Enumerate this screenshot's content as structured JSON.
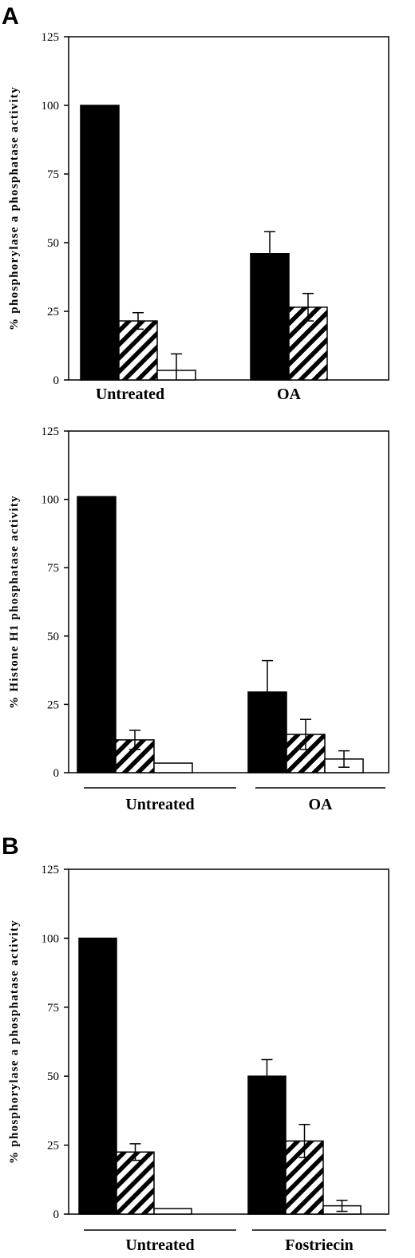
{
  "panel_letters": [
    "A",
    "B"
  ],
  "colors": {
    "black": "#000000",
    "white": "#ffffff"
  },
  "chart_data": [
    {
      "type": "bar",
      "ylabel": "% phosphorylase a phosphatase activity",
      "ylim": [
        0,
        125
      ],
      "yticks": [
        0,
        25,
        50,
        75,
        100,
        125
      ],
      "categories": [
        "Untreated",
        "OA"
      ],
      "category_underline": false,
      "series": [
        {
          "fill": "solid",
          "values": [
            100,
            46
          ],
          "errors": [
            null,
            8
          ]
        },
        {
          "fill": "hatched",
          "values": [
            21.5,
            26.5
          ],
          "errors": [
            3,
            5
          ]
        },
        {
          "fill": "open",
          "values": [
            3.5,
            null
          ],
          "errors": [
            6,
            null
          ]
        }
      ]
    },
    {
      "type": "bar",
      "ylabel": "% Histone H1 phosphatase activity",
      "ylim": [
        0,
        125
      ],
      "yticks": [
        0,
        25,
        50,
        75,
        100,
        125
      ],
      "categories": [
        "Untreated",
        "OA"
      ],
      "category_underline": true,
      "series": [
        {
          "fill": "solid",
          "values": [
            101,
            29.5
          ],
          "errors": [
            null,
            11.5
          ]
        },
        {
          "fill": "hatched",
          "values": [
            12,
            14
          ],
          "errors": [
            3.5,
            5.5
          ]
        },
        {
          "fill": "open",
          "values": [
            3.5,
            5
          ],
          "errors": [
            null,
            3
          ]
        }
      ]
    },
    {
      "type": "bar",
      "ylabel": "% phosphorylase a phosphatase activity",
      "ylim": [
        0,
        125
      ],
      "yticks": [
        0,
        25,
        50,
        75,
        100,
        125
      ],
      "categories": [
        "Untreated",
        "Fostriecin"
      ],
      "category_underline": true,
      "series": [
        {
          "fill": "solid",
          "values": [
            100,
            50
          ],
          "errors": [
            null,
            6
          ]
        },
        {
          "fill": "hatched",
          "values": [
            22.5,
            26.5
          ],
          "errors": [
            3,
            6
          ]
        },
        {
          "fill": "open",
          "values": [
            2,
            3
          ],
          "errors": [
            null,
            2
          ]
        }
      ]
    }
  ]
}
